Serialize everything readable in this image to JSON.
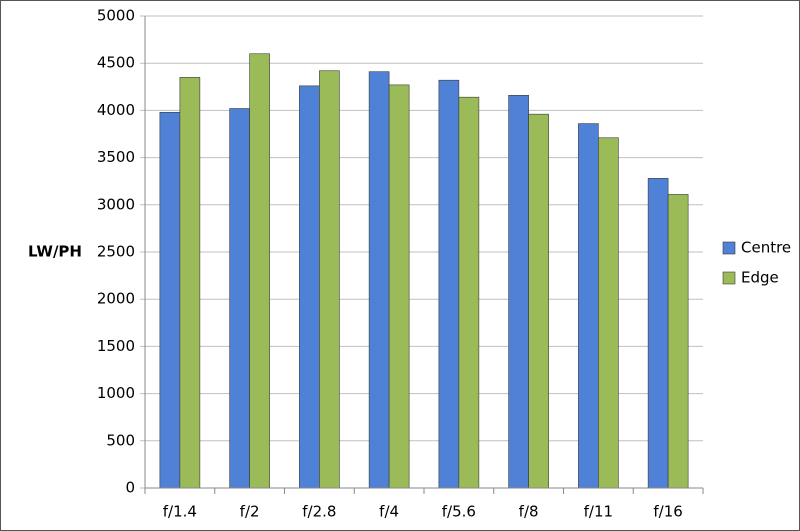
{
  "chart_data": {
    "type": "bar",
    "y_label": "LW/PH",
    "categories": [
      "f/1.4",
      "f/2",
      "f/2.8",
      "f/4",
      "f/5.6",
      "f/8",
      "f/11",
      "f/16"
    ],
    "series": [
      {
        "name": "Centre",
        "color": "#4f81d6",
        "values": [
          3980,
          4020,
          4260,
          4410,
          4320,
          4160,
          3860,
          3280
        ]
      },
      {
        "name": "Edge",
        "color": "#9bbb59",
        "values": [
          4350,
          4600,
          4420,
          4270,
          4140,
          3960,
          3710,
          3110
        ]
      }
    ],
    "ylim": [
      0,
      5000
    ],
    "yticks": [
      0,
      500,
      1000,
      1500,
      2000,
      2500,
      3000,
      3500,
      4000,
      4500,
      5000
    ],
    "grid": true,
    "legend": "right"
  }
}
